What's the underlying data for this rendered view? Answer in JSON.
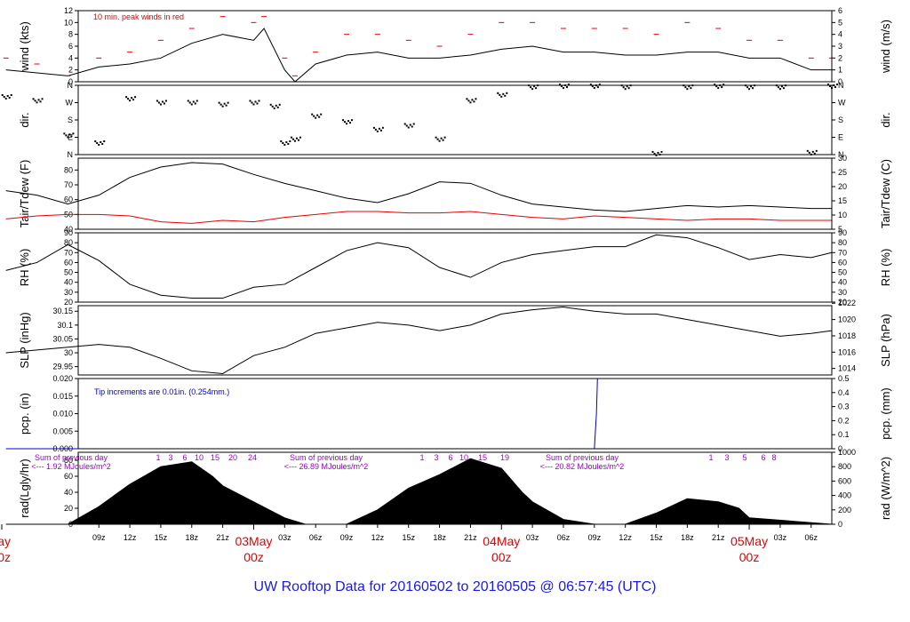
{
  "title": "UW Rooftop Data for 20160502  to  20160505 @ 06:57:45  (UTC)",
  "colors": {
    "title": "#1a1ae6",
    "day_labels": "#e60000",
    "peak": "#e60000",
    "dew": "#e60000",
    "precip": "#0000cc",
    "radiation_notes": "#9900cc"
  },
  "chart_data": [
    {
      "type": "line",
      "id": "wind",
      "ylabel_left": "wind (kts)",
      "ylabel_right": "wind (m/s)",
      "ylim": [
        0,
        12
      ],
      "ylim_right": [
        0,
        6
      ],
      "yticks_left": [
        0,
        2,
        4,
        6,
        8,
        10,
        12
      ],
      "yticks_right": [
        0,
        1,
        2,
        3,
        4,
        5,
        6
      ],
      "annotation": "10 min. peak winds in red",
      "x": [
        0,
        3,
        6,
        9,
        12,
        15,
        18,
        21,
        24,
        25,
        27,
        28,
        30,
        33,
        36,
        39,
        42,
        45,
        48,
        51,
        54,
        57,
        60,
        63,
        66,
        69,
        72,
        75,
        78,
        80
      ],
      "series": [
        {
          "values": [
            2,
            1.5,
            1,
            2.5,
            3,
            4,
            6.5,
            8,
            7,
            9,
            2,
            0,
            3,
            4.5,
            5,
            4,
            4,
            4.5,
            5.5,
            6,
            5,
            5,
            4.5,
            4.5,
            5,
            5,
            4,
            4,
            2,
            2
          ]
        },
        {
          "values": [
            4,
            3,
            1,
            4,
            5,
            7,
            9,
            11,
            10,
            11,
            4,
            1,
            5,
            8,
            8,
            7,
            6,
            8,
            10,
            10,
            9,
            9,
            9,
            8,
            10,
            9,
            7,
            7,
            4,
            4
          ]
        }
      ]
    },
    {
      "type": "scatter",
      "id": "dir",
      "ylabel_left": "dir.",
      "ylabel_right": "dir.",
      "ytick_labels": [
        "N",
        "E",
        "S",
        "W",
        "N"
      ],
      "x": [
        0,
        3,
        6,
        9,
        12,
        15,
        18,
        21,
        24,
        26,
        27,
        28,
        30,
        33,
        36,
        39,
        42,
        45,
        48,
        51,
        54,
        57,
        60,
        63,
        66,
        69,
        72,
        75,
        78,
        80
      ],
      "series": [
        {
          "values": [
            300,
            280,
            100,
            60,
            290,
            270,
            270,
            260,
            270,
            250,
            60,
            80,
            200,
            170,
            130,
            150,
            80,
            280,
            310,
            350,
            355,
            355,
            350,
            5,
            350,
            355,
            350,
            350,
            10,
            355
          ]
        }
      ]
    },
    {
      "type": "line",
      "id": "temp",
      "ylabel_left": "Tair/Tdew (F)",
      "ylabel_right": "Tair/Tdew (C)",
      "ylim": [
        40,
        88
      ],
      "ylim_right": [
        5,
        30
      ],
      "yticks_left": [
        40,
        50,
        60,
        70,
        80
      ],
      "yticks_right": [
        5,
        10,
        15,
        20,
        25,
        30
      ],
      "x": [
        0,
        3,
        6,
        9,
        12,
        15,
        18,
        21,
        24,
        27,
        30,
        33,
        36,
        39,
        42,
        45,
        48,
        51,
        54,
        57,
        60,
        63,
        66,
        69,
        72,
        75,
        78,
        80
      ],
      "series": [
        {
          "values": [
            66,
            63,
            57,
            63,
            75,
            82,
            85,
            84,
            77,
            71,
            66,
            61,
            58,
            64,
            72,
            71,
            63,
            57,
            55,
            53,
            52,
            54,
            56,
            55,
            56,
            55,
            54,
            54
          ]
        },
        {
          "values": [
            47,
            49,
            50,
            50,
            49,
            45,
            44,
            46,
            45,
            48,
            50,
            52,
            52,
            51,
            51,
            52,
            50,
            48,
            47,
            49,
            48,
            47,
            46,
            47,
            47,
            46,
            46,
            46
          ]
        }
      ]
    },
    {
      "type": "line",
      "id": "rh",
      "ylabel_left": "RH (%)",
      "ylabel_right": "RH (%)",
      "ylim": [
        20,
        90
      ],
      "yticks": [
        20,
        30,
        40,
        50,
        60,
        70,
        80,
        90
      ],
      "x": [
        0,
        3,
        6,
        9,
        12,
        15,
        18,
        21,
        24,
        27,
        30,
        33,
        36,
        39,
        42,
        45,
        48,
        51,
        54,
        57,
        60,
        63,
        66,
        69,
        72,
        75,
        78,
        80
      ],
      "series": [
        {
          "values": [
            52,
            60,
            78,
            62,
            38,
            27,
            24,
            24,
            35,
            38,
            55,
            72,
            80,
            75,
            55,
            45,
            60,
            68,
            72,
            76,
            76,
            88,
            85,
            75,
            63,
            68,
            65,
            70
          ]
        }
      ]
    },
    {
      "type": "line",
      "id": "slp",
      "ylabel_left": "SLP (inHg)",
      "ylabel_right": "SLP (hPa)",
      "ylim": [
        29.92,
        30.17
      ],
      "ylim_right": [
        1013.2,
        1021.7
      ],
      "yticks_left": [
        29.95,
        30.0,
        30.05,
        30.1,
        30.15
      ],
      "yticks_right": [
        1014,
        1016,
        1018,
        1020,
        1022
      ],
      "x": [
        0,
        3,
        6,
        9,
        12,
        15,
        18,
        21,
        24,
        27,
        30,
        33,
        36,
        39,
        42,
        45,
        48,
        51,
        54,
        57,
        60,
        63,
        66,
        69,
        72,
        75,
        78,
        80
      ],
      "series": [
        {
          "values": [
            30.0,
            30.01,
            30.02,
            30.03,
            30.02,
            29.98,
            29.935,
            29.925,
            29.99,
            30.02,
            30.07,
            30.09,
            30.11,
            30.1,
            30.08,
            30.1,
            30.14,
            30.155,
            30.165,
            30.15,
            30.14,
            30.14,
            30.12,
            30.1,
            30.08,
            30.06,
            30.07,
            30.08
          ]
        }
      ]
    },
    {
      "type": "line",
      "id": "pcp",
      "ylabel_left": "pcp. (in)",
      "ylabel_right": "pcp. (mm)",
      "ylim": [
        0,
        0.02
      ],
      "ylim_right": [
        0,
        0.5
      ],
      "yticks_left": [
        "0.000",
        "0.005",
        "0.010",
        "0.015",
        "0.020"
      ],
      "yticks_right": [
        "0",
        "0.1",
        "0.2",
        "0.3",
        "0.4",
        "0.5"
      ],
      "annotation": "Tip increments are 0.01in. (0.254mm.)",
      "x": [
        0,
        57.0,
        57.2,
        57.3,
        80
      ],
      "series": [
        {
          "values": [
            0,
            0,
            0.01,
            0.02,
            0.02
          ]
        }
      ]
    },
    {
      "type": "area",
      "id": "rad",
      "ylabel_left": "rad(Lgly/hr)",
      "ylabel_right": "rad (W/m^2)",
      "ylim": [
        0,
        90
      ],
      "ylim_right": [
        0,
        1000
      ],
      "yticks_left": [
        0,
        20,
        40,
        60,
        80
      ],
      "yticks_right": [
        0,
        200,
        400,
        600,
        800,
        1000
      ],
      "x": [
        0,
        5,
        6,
        9,
        12,
        15,
        18,
        20,
        21,
        24,
        27,
        29,
        30,
        33,
        36,
        39,
        42,
        45,
        48,
        50,
        51,
        54,
        57,
        60,
        63,
        66,
        69,
        71,
        72,
        80
      ],
      "series": [
        {
          "values": [
            0,
            0,
            0,
            22,
            50,
            72,
            78,
            60,
            48,
            28,
            8,
            0,
            0,
            0,
            18,
            45,
            62,
            82,
            70,
            40,
            28,
            6,
            0,
            0,
            14,
            32,
            28,
            20,
            8,
            0
          ]
        }
      ],
      "annotations": [
        {
          "text": "Sum of previous day",
          "day": 0
        },
        {
          "text": "<--- 1.92 MJoules/m^2",
          "day": 0
        },
        {
          "text": "Sum of previous day",
          "day": 1
        },
        {
          "text": "<--- 26.89 MJoules/m^2",
          "day": 1
        },
        {
          "text": "Sum of previous day",
          "day": 2
        },
        {
          "text": "<--- 20.82 MJoules/m^2",
          "day": 2
        }
      ],
      "hour_marks": [
        {
          "start": 0,
          "labels": [
            "1",
            "3",
            "6",
            "10",
            "15",
            "20",
            "24"
          ]
        },
        {
          "start": 1,
          "labels": [
            "1",
            "3",
            "6",
            "10",
            "15",
            "19"
          ]
        },
        {
          "start": 2,
          "labels": [
            "1",
            "3",
            "5",
            "6",
            "8"
          ]
        }
      ]
    }
  ],
  "xaxis": {
    "tick_labels": [
      "09z",
      "12z",
      "15z",
      "18z",
      "21z",
      "03z",
      "06z",
      "09z",
      "12z",
      "15z",
      "18z",
      "21z",
      "03z",
      "06z",
      "09z",
      "12z",
      "15z",
      "18z",
      "21z",
      "03z",
      "06z"
    ],
    "tick_hours": [
      9,
      12,
      15,
      18,
      21,
      27,
      30,
      33,
      36,
      39,
      42,
      45,
      51,
      54,
      57,
      60,
      63,
      66,
      69,
      75,
      78
    ],
    "day_labels": [
      {
        "day": "May",
        "hour": "00z",
        "at_hour": 0
      },
      {
        "day": "03May",
        "hour": "00z",
        "at_hour": 24
      },
      {
        "day": "04May",
        "hour": "00z",
        "at_hour": 48
      },
      {
        "day": "05May",
        "hour": "00z",
        "at_hour": 72
      }
    ],
    "range_hours": [
      7,
      80
    ]
  }
}
